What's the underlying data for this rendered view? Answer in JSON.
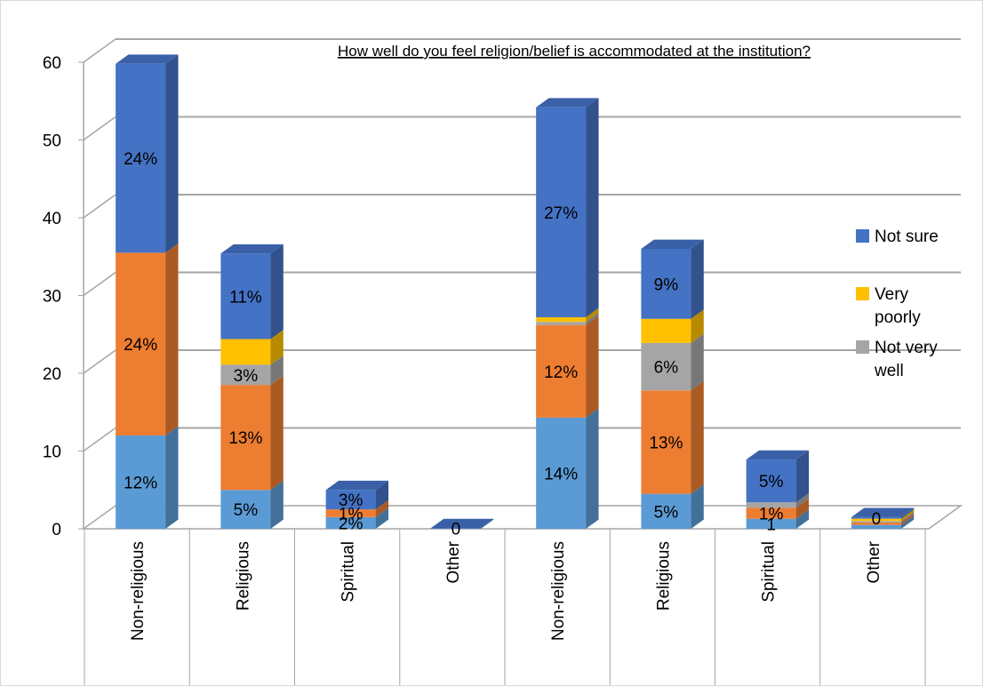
{
  "chart_data": {
    "type": "bar",
    "stacked": true,
    "title": "How well do you feel religion/belief is accommodated at the institution?",
    "categories": [
      "Non-religious",
      "Religious",
      "Spiritual",
      "Other",
      "Non-religious",
      "Religious",
      "Spiritual",
      "Other"
    ],
    "ylim": [
      0,
      60
    ],
    "yticks": [
      0,
      10,
      20,
      30,
      40,
      50,
      60
    ],
    "grid": true,
    "legend_position": "right",
    "segments": [
      {
        "color": "#5b9bd5",
        "values": [
          12,
          5,
          1.5,
          0,
          14.3,
          4.5,
          1.3,
          0.5
        ]
      },
      {
        "color": "#ed7d31",
        "values": [
          23.5,
          13.5,
          1.0,
          0,
          11.9,
          13.3,
          1.4,
          0.3
        ]
      },
      {
        "color": "#a5a5a5",
        "values": [
          0,
          2.6,
          0,
          0,
          0.4,
          6.1,
          0.7,
          0.2
        ]
      },
      {
        "color": "#ffc000",
        "values": [
          0,
          3.3,
          0,
          0,
          0.6,
          3.1,
          0,
          0.3
        ]
      },
      {
        "color": "#4472c4",
        "values": [
          24.3,
          11.0,
          2.5,
          0.1,
          27.0,
          9.0,
          5.5,
          0.2
        ]
      }
    ],
    "data_labels": [
      [
        "12%",
        "24%",
        "",
        "",
        "24%"
      ],
      [
        "5%",
        "13%",
        "3%",
        "",
        "11%"
      ],
      [
        "2%",
        "1%",
        "",
        "",
        "3%"
      ],
      [
        "",
        "",
        "",
        "",
        "0"
      ],
      [
        "14%",
        "12%",
        "",
        "",
        "27%"
      ],
      [
        "5%",
        "13%",
        "6%",
        "",
        "9%"
      ],
      [
        "1",
        "1%",
        "",
        "",
        "5%"
      ],
      [
        "",
        "",
        "",
        "",
        "0"
      ]
    ],
    "legend": [
      {
        "label": "Not sure",
        "color": "#4472c4"
      },
      {
        "label": "Very poorly",
        "color": "#ffc000"
      },
      {
        "label": "Not very well",
        "color": "#a5a5a5"
      }
    ]
  }
}
